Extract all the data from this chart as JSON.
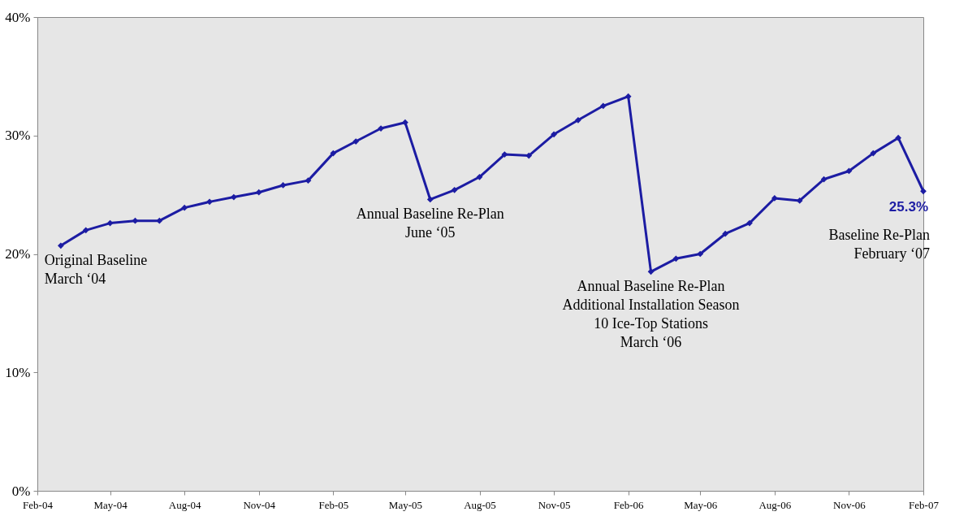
{
  "chart_data": {
    "type": "line",
    "x": [
      "2004-03",
      "2004-04",
      "2004-05",
      "2004-06",
      "2004-07",
      "2004-08",
      "2004-09",
      "2004-10",
      "2004-11",
      "2004-12",
      "2005-01",
      "2005-02",
      "2005-03",
      "2005-04",
      "2005-05",
      "2005-06",
      "2005-07",
      "2005-08",
      "2005-09",
      "2005-10",
      "2005-11",
      "2005-12",
      "2006-01",
      "2006-02",
      "2006-03",
      "2006-04",
      "2006-05",
      "2006-06",
      "2006-07",
      "2006-08",
      "2006-09",
      "2006-10",
      "2006-11",
      "2006-12",
      "2007-01",
      "2007-02"
    ],
    "series": [
      {
        "color": "#1c1ca3",
        "values": [
          20.7,
          22.0,
          22.6,
          22.8,
          22.8,
          23.9,
          24.4,
          24.8,
          25.2,
          25.8,
          26.2,
          28.5,
          29.5,
          30.6,
          31.1,
          24.6,
          25.4,
          26.5,
          28.4,
          28.3,
          30.1,
          31.3,
          32.5,
          33.3,
          18.5,
          19.6,
          20.0,
          21.7,
          22.6,
          24.7,
          24.5,
          26.3,
          27.0,
          28.5,
          29.8,
          25.3
        ],
        "value_labels": [
          null,
          null,
          null,
          null,
          null,
          null,
          null,
          null,
          null,
          null,
          null,
          null,
          null,
          null,
          null,
          null,
          null,
          null,
          null,
          null,
          null,
          null,
          null,
          null,
          null,
          null,
          null,
          null,
          null,
          null,
          null,
          null,
          null,
          null,
          null,
          "25.3%"
        ]
      }
    ],
    "xlim": [
      "2004-02",
      "2007-02"
    ],
    "xticks": [
      {
        "value": "2004-02",
        "label": "Feb-04"
      },
      {
        "value": "2004-05",
        "label": "May-04"
      },
      {
        "value": "2004-08",
        "label": "Aug-04"
      },
      {
        "value": "2004-11",
        "label": "Nov-04"
      },
      {
        "value": "2005-02",
        "label": "Feb-05"
      },
      {
        "value": "2005-05",
        "label": "May-05"
      },
      {
        "value": "2005-08",
        "label": "Aug-05"
      },
      {
        "value": "2005-11",
        "label": "Nov-05"
      },
      {
        "value": "2006-02",
        "label": "Feb-06"
      },
      {
        "value": "2006-05",
        "label": "May-06"
      },
      {
        "value": "2006-08",
        "label": "Aug-06"
      },
      {
        "value": "2006-11",
        "label": "Nov-06"
      },
      {
        "value": "2007-02",
        "label": "Feb-07"
      }
    ],
    "ylim": [
      0,
      40
    ],
    "yticks": [
      {
        "value": 0,
        "label": "0%"
      },
      {
        "value": 10,
        "label": "10%"
      },
      {
        "value": 20,
        "label": "20%"
      },
      {
        "value": 30,
        "label": "30%"
      },
      {
        "value": 40,
        "label": "40%"
      }
    ],
    "grid": false,
    "marker": "diamond",
    "line_style": "solid",
    "annotations": [
      {
        "text": "Original Baseline\nMarch ‘04",
        "x": "2004-03",
        "y": 20.7
      },
      {
        "text": "Annual Baseline Re-Plan\nJune ‘05",
        "x": "2005-06",
        "y": 24.6
      },
      {
        "text": "Annual Baseline Re-Plan\nAdditional Installation Season\n10 Ice-Top Stations\nMarch ‘06",
        "x": "2006-03",
        "y": 18.5
      },
      {
        "text": "Baseline Re-Plan\nFebruary ‘07",
        "x": "2007-02",
        "y": 25.3
      }
    ]
  }
}
